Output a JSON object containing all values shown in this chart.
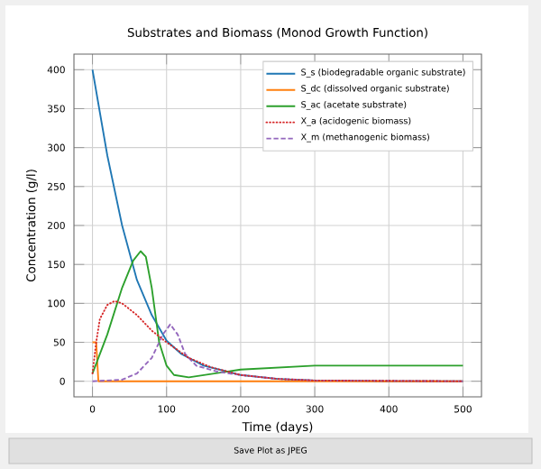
{
  "chart_data": {
    "type": "line",
    "title": "Substrates and Biomass (Monod Growth Function)",
    "xlabel": "Time (days)",
    "ylabel": "Concentration (g/l)",
    "xlim": [
      -25,
      525
    ],
    "ylim": [
      -20,
      420
    ],
    "xticks": [
      0,
      100,
      200,
      300,
      400,
      500
    ],
    "yticks": [
      0,
      50,
      100,
      150,
      200,
      250,
      300,
      350,
      400
    ],
    "grid": true,
    "legend": "top right",
    "annotations": [
      "Save Plot as JPEG"
    ],
    "series": [
      {
        "name": "S_s (biodegradable organic substrate)",
        "color": "#1f77b4",
        "line_style": "solid",
        "x": [
          0,
          20,
          40,
          60,
          80,
          100,
          120,
          150,
          200,
          250,
          300,
          400,
          500
        ],
        "values": [
          400,
          290,
          200,
          130,
          85,
          52,
          35,
          20,
          8,
          3,
          1,
          0,
          0
        ]
      },
      {
        "name": "S_dc (dissolved organic substrate)",
        "color": "#ff7f0e",
        "line_style": "solid",
        "x": [
          0,
          5,
          8,
          100,
          300,
          500
        ],
        "values": [
          50,
          50,
          0,
          0,
          0,
          0
        ]
      },
      {
        "name": "S_ac (acetate substrate)",
        "color": "#2ca02c",
        "line_style": "solid",
        "x": [
          0,
          20,
          40,
          55,
          65,
          72,
          80,
          90,
          100,
          110,
          130,
          200,
          300,
          400,
          500
        ],
        "values": [
          10,
          60,
          120,
          155,
          167,
          160,
          120,
          50,
          20,
          8,
          5,
          15,
          20,
          20,
          20
        ]
      },
      {
        "name": "X_a (acidogenic biomass)",
        "color": "#d62728",
        "line_style": "dotted",
        "x": [
          0,
          5,
          10,
          20,
          30,
          40,
          60,
          80,
          100,
          130,
          160,
          200,
          250,
          300,
          500
        ],
        "values": [
          10,
          50,
          80,
          98,
          103,
          100,
          85,
          65,
          50,
          30,
          18,
          8,
          3,
          1,
          0
        ]
      },
      {
        "name": "X_m (methanogenic biomass)",
        "color": "#9467bd",
        "line_style": "dashed",
        "x": [
          0,
          40,
          60,
          80,
          95,
          105,
          115,
          125,
          140,
          170,
          200,
          250,
          300,
          500
        ],
        "values": [
          0,
          2,
          10,
          30,
          60,
          73,
          60,
          35,
          20,
          12,
          8,
          3,
          1,
          0
        ]
      }
    ]
  }
}
